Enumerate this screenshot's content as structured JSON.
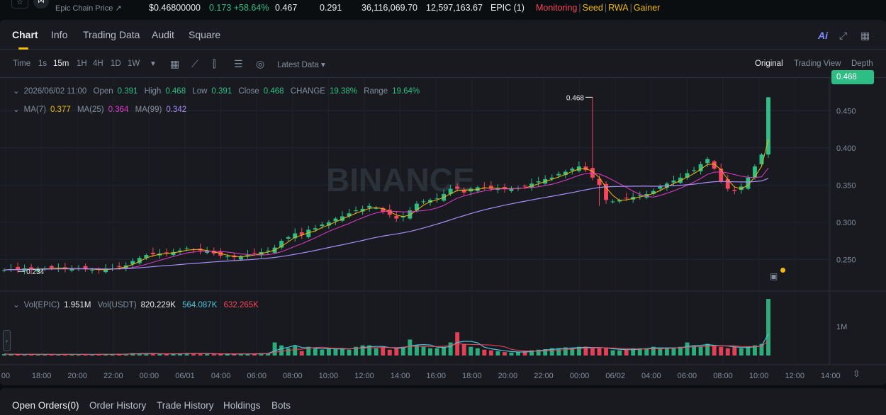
{
  "ticker": {
    "name": "Epic Chain Price ↗",
    "price": "$0.46800000",
    "change": "0.173 +58.64%",
    "high": "0.467",
    "low": "0.291",
    "volume_token": "36,116,069.70",
    "volume_usdt": "12,597,163.67",
    "pair": "EPIC (1)",
    "tags": [
      "Monitoring",
      "Seed",
      "RWA",
      "Gainer"
    ]
  },
  "tabs": [
    "Chart",
    "Info",
    "Trading Data",
    "Audit",
    "Square"
  ],
  "ai_label": "Ai",
  "toolbar": {
    "time_label": "Time",
    "intervals": [
      "1s",
      "15m",
      "1H",
      "4H",
      "1D",
      "1W"
    ],
    "active_interval": "15m",
    "latest_data": "Latest Data",
    "views": [
      "Original",
      "Trading View",
      "Depth"
    ],
    "active_view": "Original"
  },
  "legend": {
    "date": "2026/06/02 11:00",
    "open_label": "Open",
    "open": "0.391",
    "high_label": "High",
    "high": "0.468",
    "low_label": "Low",
    "low": "0.391",
    "close_label": "Close",
    "close": "0.468",
    "change_label": "CHANGE",
    "change": "19.38%",
    "range_label": "Range",
    "range": "19.64%",
    "ma7_label": "MA(7)",
    "ma7": "0.377",
    "ma25_label": "MA(25)",
    "ma25": "0.364",
    "ma99_label": "MA(99)",
    "ma99": "0.342",
    "vol_epic_label": "Vol(EPIC)",
    "vol_epic": "1.951M",
    "vol_usdt_label": "Vol(USDT)",
    "vol_usdt": "820.229K",
    "vol_ma1": "564.087K",
    "vol_ma2": "632.265K"
  },
  "price_badge": "0.468",
  "watermark": "BINANCE",
  "colors": {
    "up": "#2ebd85",
    "down": "#f6465d",
    "ma7": "#f0b90b",
    "ma25": "#e23bcb",
    "ma99": "#a98cf8",
    "vol_ma1": "#4fc3d9",
    "vol_ma2": "#f6465d"
  },
  "chart_data": {
    "type": "candlestick",
    "price_axis_ticks": [
      "0.450",
      "0.400",
      "0.350",
      "0.300",
      "0.250"
    ],
    "volume_axis_ticks": [
      "1M"
    ],
    "time_axis_ticks": [
      "00",
      "18:00",
      "20:00",
      "22:00",
      "00:00",
      "06/01",
      "04:00",
      "06:00",
      "08:00",
      "10:00",
      "12:00",
      "14:00",
      "16:00",
      "18:00",
      "20:00",
      "22:00",
      "00:00",
      "06/02",
      "04:00",
      "06:00",
      "08:00",
      "10:00",
      "12:00",
      "14:00"
    ],
    "max_marker": "0.468",
    "min_marker": "0.234",
    "ylim": [
      0.218,
      0.475
    ],
    "close_series": [
      0.236,
      0.237,
      0.236,
      0.238,
      0.237,
      0.237,
      0.238,
      0.239,
      0.238,
      0.238,
      0.237,
      0.238,
      0.237,
      0.236,
      0.236,
      0.237,
      0.238,
      0.24,
      0.242,
      0.248,
      0.252,
      0.256,
      0.257,
      0.258,
      0.259,
      0.26,
      0.262,
      0.265,
      0.263,
      0.262,
      0.261,
      0.258,
      0.255,
      0.254,
      0.253,
      0.254,
      0.256,
      0.258,
      0.26,
      0.262,
      0.266,
      0.275,
      0.28,
      0.285,
      0.283,
      0.29,
      0.292,
      0.297,
      0.3,
      0.305,
      0.308,
      0.312,
      0.316,
      0.318,
      0.322,
      0.319,
      0.314,
      0.31,
      0.305,
      0.308,
      0.316,
      0.325,
      0.328,
      0.33,
      0.332,
      0.338,
      0.345,
      0.345,
      0.34,
      0.345,
      0.347,
      0.346,
      0.345,
      0.346,
      0.345,
      0.345,
      0.346,
      0.348,
      0.352,
      0.355,
      0.358,
      0.36,
      0.365,
      0.368,
      0.372,
      0.375,
      0.37,
      0.36,
      0.35,
      0.33,
      0.328,
      0.33,
      0.332,
      0.334,
      0.336,
      0.338,
      0.342,
      0.348,
      0.352,
      0.356,
      0.36,
      0.366,
      0.37,
      0.378,
      0.385,
      0.372,
      0.355,
      0.345,
      0.342,
      0.348,
      0.36,
      0.375,
      0.391,
      0.468
    ],
    "volume_series": [
      0.05,
      0.04,
      0.04,
      0.03,
      0.05,
      0.04,
      0.04,
      0.03,
      0.04,
      0.05,
      0.04,
      0.03,
      0.04,
      0.04,
      0.05,
      0.04,
      0.04,
      0.05,
      0.06,
      0.08,
      0.07,
      0.06,
      0.06,
      0.05,
      0.06,
      0.06,
      0.06,
      0.08,
      0.07,
      0.06,
      0.06,
      0.05,
      0.05,
      0.05,
      0.05,
      0.06,
      0.06,
      0.06,
      0.07,
      0.08,
      0.45,
      0.35,
      0.25,
      0.35,
      0.15,
      0.3,
      0.25,
      0.2,
      0.25,
      0.22,
      0.25,
      0.2,
      0.3,
      0.35,
      0.35,
      0.25,
      0.3,
      0.2,
      0.25,
      0.3,
      0.55,
      0.35,
      0.3,
      0.25,
      0.25,
      0.3,
      0.45,
      0.8,
      0.4,
      0.3,
      0.25,
      0.2,
      0.18,
      0.15,
      0.12,
      0.1,
      0.12,
      0.15,
      0.18,
      0.2,
      0.22,
      0.25,
      0.25,
      0.28,
      0.25,
      0.3,
      0.3,
      0.25,
      0.25,
      0.25,
      0.18,
      0.18,
      0.2,
      0.25,
      0.25,
      0.25,
      0.3,
      0.25,
      0.25,
      0.25,
      0.3,
      0.45,
      0.35,
      0.3,
      0.4,
      0.35,
      0.3,
      0.25,
      0.3,
      0.25,
      0.3,
      0.35,
      0.4,
      1.95
    ]
  },
  "bottom_tabs": [
    "Open Orders(0)",
    "Order History",
    "Trade History",
    "Holdings",
    "Bots"
  ]
}
